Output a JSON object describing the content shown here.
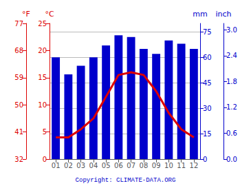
{
  "chart_data": {
    "type": "bar",
    "categories": [
      "01",
      "02",
      "03",
      "04",
      "05",
      "06",
      "07",
      "08",
      "09",
      "10",
      "11",
      "12"
    ],
    "series": [
      {
        "type": "bar",
        "color": "#0000cc",
        "values": [
          60,
          50,
          55,
          60,
          67,
          73,
          72,
          65,
          62,
          70,
          68,
          65
        ]
      },
      {
        "type": "line",
        "color": "#dd0000",
        "axis": "y2",
        "values": [
          4.0,
          4.0,
          5.5,
          7.5,
          11.5,
          15.5,
          16.0,
          15.5,
          12.5,
          8.5,
          5.5,
          4.0
        ]
      }
    ],
    "ylabel": "mm",
    "ylim": [
      0,
      80
    ],
    "yticks": [
      0,
      15,
      30,
      45,
      60,
      75
    ],
    "y2label": "°C",
    "y2lim": [
      0,
      25
    ],
    "y2ticks": [
      0,
      5,
      10,
      15,
      20,
      25
    ],
    "y3label": "°F",
    "y3lim": [
      32,
      77
    ],
    "y3ticks": [
      32,
      41,
      50,
      59,
      68,
      77
    ],
    "y4label": "inch",
    "y4lim": [
      0,
      3.1496062992125986
    ],
    "y4ticks": [
      {
        "value": 0,
        "label": "0.0"
      },
      0.6,
      1.2,
      1.8,
      2.4,
      {
        "value": 3,
        "label": "3.0"
      }
    ],
    "grid": true,
    "annotation": "Copyright: CLIMATE-DATA.ORG"
  }
}
